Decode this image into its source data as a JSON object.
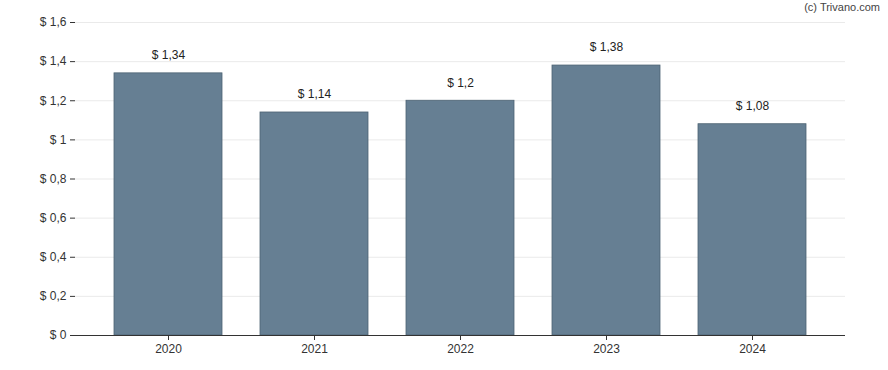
{
  "chart_data": {
    "type": "bar",
    "caption": "(c) Trivano.com",
    "categories": [
      "2020",
      "2021",
      "2022",
      "2023",
      "2024"
    ],
    "values": [
      1.34,
      1.14,
      1.2,
      1.38,
      1.08
    ],
    "value_labels": [
      "$ 1,34",
      "$ 1,14",
      "$ 1,2",
      "$ 1,38",
      "$ 1,08"
    ],
    "data_labels": true,
    "color": "#667f93",
    "ylim": [
      0,
      1.6
    ],
    "yticks": [
      {
        "value": 0,
        "label": "$ 0"
      },
      {
        "value": 0.2,
        "label": "$ 0,2"
      },
      {
        "value": 0.4,
        "label": "$ 0,4"
      },
      {
        "value": 0.6,
        "label": "$ 0,6"
      },
      {
        "value": 0.8,
        "label": "$ 0,8"
      },
      {
        "value": 1,
        "label": "$ 1"
      },
      {
        "value": 1.2,
        "label": "$ 1,2"
      },
      {
        "value": 1.4,
        "label": "$ 1,4"
      },
      {
        "value": 1.6,
        "label": "$ 1,6"
      }
    ],
    "grid": true
  }
}
